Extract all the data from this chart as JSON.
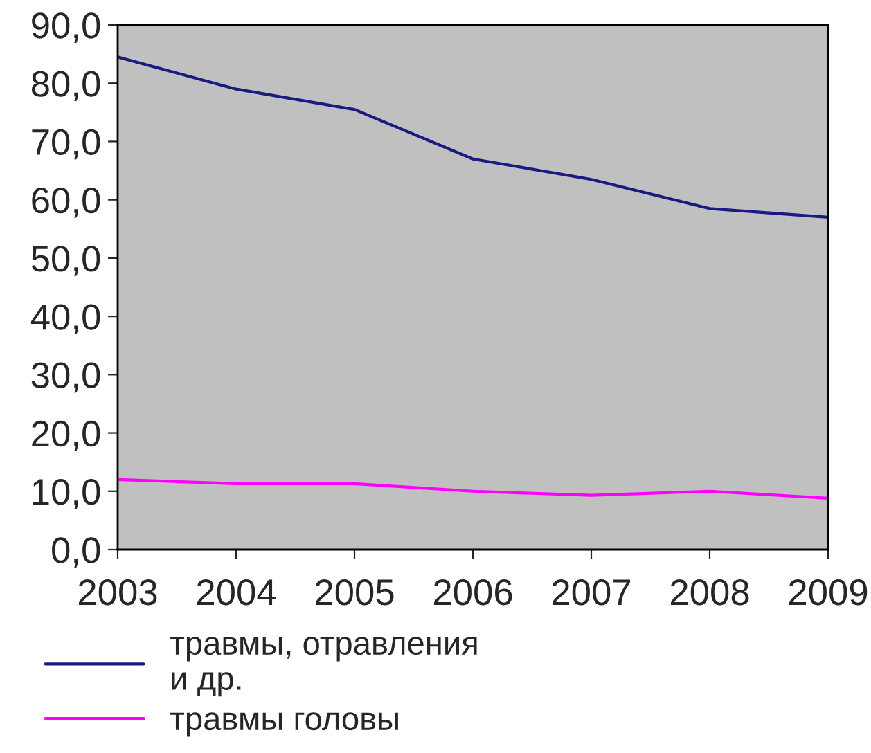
{
  "chart_data": {
    "type": "line",
    "x": [
      2003,
      2004,
      2005,
      2006,
      2007,
      2008,
      2009
    ],
    "series": [
      {
        "name": "травмы, отравления\nи др.",
        "color": "#1a1a80",
        "values": [
          84.5,
          79.0,
          75.5,
          67.0,
          63.5,
          58.5,
          57.0
        ]
      },
      {
        "name": "травмы головы",
        "color": "#ff00ff",
        "values": [
          12.0,
          11.3,
          11.3,
          10.0,
          9.3,
          10.0,
          8.8
        ]
      }
    ],
    "xlim": [
      2003,
      2009
    ],
    "xticks": [
      2003,
      2004,
      2005,
      2006,
      2007,
      2008,
      2009
    ],
    "ylim": [
      0,
      90
    ],
    "yticks": [
      {
        "value": 0,
        "label": "0,0"
      },
      {
        "value": 10,
        "label": "10,0"
      },
      {
        "value": 20,
        "label": "20,0"
      },
      {
        "value": 30,
        "label": "30,0"
      },
      {
        "value": 40,
        "label": "40,0"
      },
      {
        "value": 50,
        "label": "50,0"
      },
      {
        "value": 60,
        "label": "60,0"
      },
      {
        "value": 70,
        "label": "70,0"
      },
      {
        "value": 80,
        "label": "80,0"
      },
      {
        "value": 90,
        "label": "90,0"
      }
    ],
    "grid": false,
    "legend": "bottom left",
    "marker": "none",
    "line_style": "solid"
  }
}
